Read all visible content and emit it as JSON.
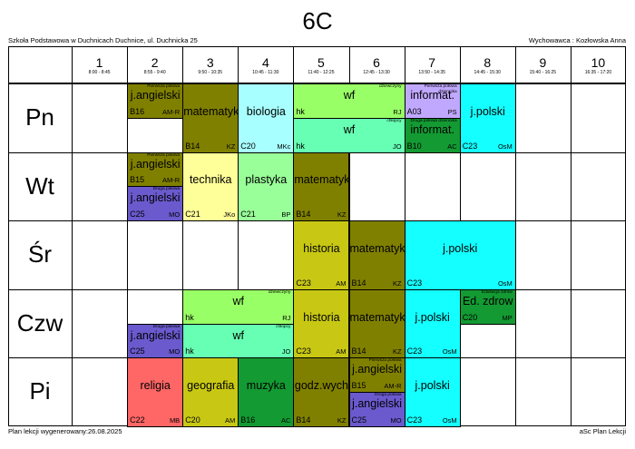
{
  "header": {
    "title": "6C",
    "school": "Szkoła Podstawowa w Duchnicach Duchnice, ul. Duchnicka 25",
    "teacher": "Wychowawca : Kozłowska Anna"
  },
  "footer": {
    "generated": "Plan lekcji wygenerowany:26.08.2025",
    "brand": "aSc Plan Lekcji"
  },
  "periods": [
    {
      "num": "1",
      "time": "8:00 - 8:45"
    },
    {
      "num": "2",
      "time": "8:55 - 9:40"
    },
    {
      "num": "3",
      "time": "9:50 - 10:35"
    },
    {
      "num": "4",
      "time": "10:45 - 11:30"
    },
    {
      "num": "5",
      "time": "11:40 - 12:25"
    },
    {
      "num": "6",
      "time": "12:45 - 13:30"
    },
    {
      "num": "7",
      "time": "13:50 - 14:35"
    },
    {
      "num": "8",
      "time": "14:45 - 15:30"
    },
    {
      "num": "9",
      "time": "15:40 - 16:25"
    },
    {
      "num": "10",
      "time": "16:35 - 17:20"
    }
  ],
  "days": [
    "Pn",
    "Wt",
    "Śr",
    "Czw",
    "Pi"
  ],
  "lessons": [
    {
      "day": 0,
      "p": 2,
      "span": 1,
      "part": "top",
      "subject": "j.angielski",
      "room": "B16",
      "teacher": "AM-R",
      "group": "Pierwsza połowa",
      "color": "#808000"
    },
    {
      "day": 0,
      "p": 3,
      "span": 1,
      "part": "full",
      "subject": "matematyka",
      "room": "B14",
      "teacher": "KZ",
      "color": "#808000"
    },
    {
      "day": 0,
      "p": 4,
      "span": 1,
      "part": "full",
      "subject": "biologia",
      "room": "C20",
      "teacher": "MKc",
      "color": "#a8ffff"
    },
    {
      "day": 0,
      "p": 5,
      "span": 2,
      "part": "top",
      "subject": "wf",
      "room": "hk",
      "teacher": "RJ",
      "group": "dziewczyny",
      "color": "#99ff66"
    },
    {
      "day": 0,
      "p": 5,
      "span": 2,
      "part": "bottom",
      "subject": "wf",
      "room": "hk",
      "teacher": "JO",
      "group": "chłopcy",
      "color": "#66ffb3"
    },
    {
      "day": 0,
      "p": 7,
      "span": 1,
      "part": "top",
      "subject": "informat.",
      "room": "A03",
      "teacher": "PS",
      "group": "Pierwsza połowa dziennika",
      "color": "#c0a8ff"
    },
    {
      "day": 0,
      "p": 7,
      "span": 1,
      "part": "bottom",
      "subject": "informat.",
      "room": "B10",
      "teacher": "AC",
      "group": "Druga połowa dziennika",
      "color": "#139a33"
    },
    {
      "day": 0,
      "p": 8,
      "span": 1,
      "part": "full",
      "subject": "j.polski",
      "room": "C23",
      "teacher": "OsM",
      "color": "#14ffff"
    },
    {
      "day": 1,
      "p": 2,
      "span": 1,
      "part": "top",
      "subject": "j.angielski",
      "room": "B15",
      "teacher": "AM-R",
      "group": "Pierwsza połowa",
      "color": "#808000"
    },
    {
      "day": 1,
      "p": 2,
      "span": 1,
      "part": "bottom",
      "subject": "j.angielski",
      "room": "C25",
      "teacher": "MO",
      "group": "Druga połowa",
      "color": "#6a5acd"
    },
    {
      "day": 1,
      "p": 3,
      "span": 1,
      "part": "full",
      "subject": "technika",
      "room": "C21",
      "teacher": "JKo",
      "color": "#ffff99"
    },
    {
      "day": 1,
      "p": 4,
      "span": 1,
      "part": "full",
      "subject": "plastyka",
      "room": "C21",
      "teacher": "BP",
      "color": "#99ff99"
    },
    {
      "day": 1,
      "p": 5,
      "span": 1,
      "part": "full",
      "subject": "matematyka",
      "room": "B14",
      "teacher": "KZ",
      "color": "#808000"
    },
    {
      "day": 2,
      "p": 5,
      "span": 1,
      "part": "full",
      "subject": "historia",
      "room": "C23",
      "teacher": "AM",
      "color": "#c8c814"
    },
    {
      "day": 2,
      "p": 6,
      "span": 1,
      "part": "full",
      "subject": "matematyka",
      "room": "B14",
      "teacher": "KZ",
      "color": "#808000"
    },
    {
      "day": 2,
      "p": 7,
      "span": 2,
      "part": "full",
      "subject": "j.polski",
      "room": "C23",
      "teacher": "OsM",
      "color": "#14ffff"
    },
    {
      "day": 3,
      "p": 3,
      "span": 2,
      "part": "top",
      "subject": "wf",
      "room": "hk",
      "teacher": "RJ",
      "group": "dziewczyny",
      "color": "#99ff66"
    },
    {
      "day": 3,
      "p": 3,
      "span": 2,
      "part": "bottom",
      "subject": "wf",
      "room": "hk",
      "teacher": "JO",
      "group": "chłopcy",
      "color": "#66ffb3"
    },
    {
      "day": 3,
      "p": 2,
      "span": 1,
      "part": "bottom",
      "subject": "j.angielski",
      "room": "C25",
      "teacher": "MO",
      "group": "Druga połowa",
      "color": "#6a5acd"
    },
    {
      "day": 3,
      "p": 5,
      "span": 1,
      "part": "full",
      "subject": "historia",
      "room": "C23",
      "teacher": "AM",
      "color": "#c8c814"
    },
    {
      "day": 3,
      "p": 6,
      "span": 1,
      "part": "full",
      "subject": "matematyka",
      "room": "B14",
      "teacher": "KZ",
      "color": "#808000"
    },
    {
      "day": 3,
      "p": 7,
      "span": 1,
      "part": "full",
      "subject": "j.polski",
      "room": "C23",
      "teacher": "OsM",
      "color": "#14ffff"
    },
    {
      "day": 3,
      "p": 8,
      "span": 1,
      "part": "top",
      "subject": "Ed. zdrow",
      "room": "C20",
      "teacher": "MP",
      "group": "Edukacja zdrow",
      "color": "#139a33"
    },
    {
      "day": 4,
      "p": 2,
      "span": 1,
      "part": "full",
      "subject": "religia",
      "room": "C22",
      "teacher": "MB",
      "color": "#ff6666"
    },
    {
      "day": 4,
      "p": 3,
      "span": 1,
      "part": "full",
      "subject": "geografia",
      "room": "C20",
      "teacher": "AM",
      "color": "#c8c814"
    },
    {
      "day": 4,
      "p": 4,
      "span": 1,
      "part": "full",
      "subject": "muzyka",
      "room": "B16",
      "teacher": "AC",
      "color": "#139a33"
    },
    {
      "day": 4,
      "p": 5,
      "span": 1,
      "part": "full",
      "subject": "godz.wych",
      "room": "B14",
      "teacher": "KZ",
      "color": "#808000"
    },
    {
      "day": 4,
      "p": 6,
      "span": 1,
      "part": "top",
      "subject": "j.angielski",
      "room": "B15",
      "teacher": "AM-R",
      "group": "Pierwsza połowa",
      "color": "#808000"
    },
    {
      "day": 4,
      "p": 6,
      "span": 1,
      "part": "bottom",
      "subject": "j.angielski",
      "room": "C25",
      "teacher": "MO",
      "group": "Druga połowa",
      "color": "#6a5acd"
    },
    {
      "day": 4,
      "p": 7,
      "span": 1,
      "part": "full",
      "subject": "j.polski",
      "room": "C23",
      "teacher": "OsM",
      "color": "#14ffff"
    }
  ]
}
